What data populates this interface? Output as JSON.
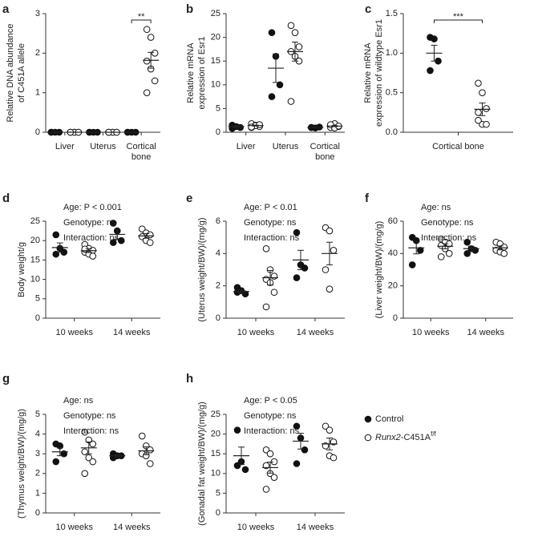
{
  "legend": {
    "entries": [
      {
        "name": "Control",
        "color": "#111",
        "filled": true
      },
      {
        "name": "Runx2",
        "suffix": "-C451A",
        "sup": "f/f",
        "color": "#111",
        "filled": false
      }
    ]
  },
  "chart_data": [
    {
      "panel": "a",
      "type": "dot",
      "ylabel": [
        "Relative DNA abundance",
        "of C451A allele"
      ],
      "categories": [
        [
          "Liver"
        ],
        [
          "Uterus"
        ],
        [
          "Cortical",
          "bone"
        ]
      ],
      "ylim": [
        0,
        3
      ],
      "yticks": [
        0,
        1,
        2,
        3
      ],
      "series": [
        {
          "values": [
            [
              0,
              0,
              0,
              0
            ],
            [
              0,
              0,
              0,
              0
            ],
            [
              0,
              0,
              0,
              0
            ]
          ],
          "means": [
            0,
            0,
            0
          ],
          "sems": [
            0,
            0,
            0
          ]
        },
        {
          "values": [
            [
              0,
              0,
              0,
              0,
              0,
              0,
              0
            ],
            [
              0,
              0,
              0,
              0,
              0,
              0,
              0
            ],
            [
              2.6,
              2.4,
              2.0,
              1.8,
              1.6,
              1.3,
              1.0
            ]
          ],
          "means": [
            0,
            0,
            1.82
          ],
          "sems": [
            0,
            0,
            0.2
          ]
        }
      ],
      "significance": {
        "label": "**",
        "category": 2
      }
    },
    {
      "panel": "b",
      "type": "dot",
      "ylabel": [
        "Relative mRNA",
        "expression of Esr1"
      ],
      "categories": [
        [
          "Liver"
        ],
        [
          "Uterus"
        ],
        [
          "Cortical",
          "bone"
        ]
      ],
      "ylim": [
        0,
        25
      ],
      "yticks": [
        0,
        5,
        10,
        15,
        20,
        25
      ],
      "series": [
        {
          "values": [
            [
              1.5,
              1.2,
              1.0,
              0.8
            ],
            [
              21,
              16,
              10,
              7.5
            ],
            [
              1.0,
              0.9,
              1.1,
              1.0
            ]
          ],
          "means": [
            1.2,
            13.5,
            1.0
          ],
          "sems": [
            0.2,
            3,
            0.05
          ]
        },
        {
          "values": [
            [
              1.8,
              1.5,
              1.2,
              1.0,
              1.4,
              1.6,
              1.1
            ],
            [
              22.5,
              21,
              18,
              17,
              16,
              15,
              6.5
            ],
            [
              1.5,
              1.8,
              1.2,
              1.0,
              0.9,
              1.3,
              1.6
            ]
          ],
          "means": [
            1.4,
            17,
            1.3
          ],
          "sems": [
            0.1,
            2,
            0.1
          ]
        }
      ]
    },
    {
      "panel": "c",
      "type": "dot",
      "ylabel": [
        "Relative mRNA",
        "expression of wildtype Esr1"
      ],
      "categories": [
        [
          "Cortical bone"
        ]
      ],
      "ylim": [
        0,
        1.5
      ],
      "yticks": [
        {
          "value": 0,
          "label": "0.0"
        },
        {
          "value": 0.5,
          "label": "0.5"
        },
        {
          "value": 1,
          "label": "1.0"
        },
        {
          "value": 1.5,
          "label": "1.5"
        }
      ],
      "series": [
        {
          "values": [
            [
              1.2,
              1.18,
              0.9,
              0.78
            ]
          ],
          "means": [
            1.0
          ],
          "sems": [
            0.1
          ]
        },
        {
          "values": [
            [
              0.62,
              0.5,
              0.3,
              0.25,
              0.1,
              0.1,
              0.15
            ]
          ],
          "means": [
            0.29
          ],
          "sems": [
            0.08
          ]
        }
      ],
      "significance": {
        "label": "***",
        "category": 0
      }
    },
    {
      "panel": "d",
      "type": "dot",
      "ylabel": [
        "Body weight/g"
      ],
      "annotations": [
        "Age: P < 0.001",
        "Genotype: ns",
        "Interaction: ns"
      ],
      "categories": [
        [
          "10 weeks"
        ],
        [
          "14 weeks"
        ]
      ],
      "ylim": [
        0,
        25
      ],
      "yticks": [
        0,
        5,
        10,
        15,
        20,
        25
      ],
      "series": [
        {
          "values": [
            [
              21.5,
              18,
              17,
              16.5
            ],
            [
              24.5,
              22.5,
              20,
              19.5
            ]
          ],
          "means": [
            18.2,
            21.6
          ],
          "sems": [
            1.2,
            1.2
          ]
        },
        {
          "values": [
            [
              19,
              18,
              17.5,
              17,
              16.5,
              16,
              17.8
            ],
            [
              23,
              22,
              21.5,
              21,
              20,
              19.5
            ]
          ],
          "means": [
            17.4,
            21.2
          ],
          "sems": [
            0.5,
            0.6
          ]
        }
      ]
    },
    {
      "panel": "e",
      "type": "dot",
      "ylabel": [
        "(Uterus weight/BW)/(mg/g)"
      ],
      "annotations": [
        "Age: P < 0.01",
        "Genotype: ns",
        "Interaction: ns"
      ],
      "categories": [
        [
          "10 weeks"
        ],
        [
          "14 weeks"
        ]
      ],
      "ylim": [
        0,
        6
      ],
      "yticks": [
        0,
        2,
        4,
        6
      ],
      "series": [
        {
          "values": [
            [
              1.9,
              1.7,
              1.5,
              1.6
            ],
            [
              5.3,
              3.3,
              3.1,
              2.5
            ]
          ],
          "means": [
            1.65,
            3.6
          ],
          "sems": [
            0.1,
            0.6
          ]
        },
        {
          "values": [
            [
              4.3,
              3.0,
              2.6,
              2.4,
              2.2,
              1.6,
              0.7
            ],
            [
              5.6,
              5.4,
              4.2,
              3.0,
              1.8
            ]
          ],
          "means": [
            2.5,
            4.0
          ],
          "sems": [
            0.45,
            0.7
          ]
        }
      ]
    },
    {
      "panel": "f",
      "type": "dot",
      "ylabel": [
        "(Liver weight/BW)/(mg/g)"
      ],
      "annotations": [
        "Age: ns",
        "Genotype: ns",
        "Interaction: ns"
      ],
      "categories": [
        [
          "10 weeks"
        ],
        [
          "14 weeks"
        ]
      ],
      "ylim": [
        0,
        60
      ],
      "yticks": [
        0,
        20,
        40,
        60
      ],
      "series": [
        {
          "values": [
            [
              50,
              48,
              42,
              33
            ],
            [
              47,
              43,
              42,
              40
            ]
          ],
          "means": [
            43.5,
            43
          ],
          "sems": [
            3.7,
            1.5
          ]
        },
        {
          "values": [
            [
              49,
              47,
              46,
              45,
              43,
              40,
              38
            ],
            [
              47,
              46,
              44,
              42,
              41,
              40
            ]
          ],
          "means": [
            44.5,
            43.5
          ],
          "sems": [
            1.6,
            1.2
          ]
        }
      ]
    },
    {
      "panel": "g",
      "type": "dot",
      "ylabel": [
        "(Thymus weight/BW)/(mg/g)"
      ],
      "annotations": [
        "Age: ns",
        "Genotype: ns",
        "Interaction: ns"
      ],
      "categories": [
        [
          "10 weeks"
        ],
        [
          "14 weeks"
        ]
      ],
      "ylim": [
        0,
        5
      ],
      "yticks": [
        0,
        1,
        2,
        3,
        4,
        5
      ],
      "series": [
        {
          "values": [
            [
              3.5,
              3.4,
              3.0,
              2.6
            ],
            [
              3.0,
              2.9,
              2.9,
              2.8
            ]
          ],
          "means": [
            3.1,
            2.9
          ],
          "sems": [
            0.2,
            0.05
          ]
        },
        {
          "values": [
            [
              4.1,
              3.7,
              3.5,
              3.1,
              2.8,
              2.6,
              2.0
            ],
            [
              3.9,
              3.4,
              3.2,
              3.0,
              2.9,
              2.5
            ]
          ],
          "means": [
            3.3,
            3.15
          ],
          "sems": [
            0.3,
            0.2
          ]
        }
      ]
    },
    {
      "panel": "h",
      "type": "dot",
      "ylabel": [
        "(Gonadal fat weight/BW)/(mg/g)"
      ],
      "annotations": [
        "Age: P < 0.05",
        "Genotype: ns",
        "Interaction: ns"
      ],
      "categories": [
        [
          "10 weeks"
        ],
        [
          "14 weeks"
        ]
      ],
      "ylim": [
        0,
        25
      ],
      "yticks": [
        0,
        5,
        10,
        15,
        20,
        25
      ],
      "series": [
        {
          "values": [
            [
              21,
              13,
              11,
              12
            ],
            [
              22,
              19,
              16,
              12.5
            ]
          ],
          "means": [
            14.5,
            18.2
          ],
          "sems": [
            2.2,
            2
          ]
        },
        {
          "values": [
            [
              16,
              15,
              13,
              12,
              10,
              9,
              6
            ],
            [
              22,
              21,
              18,
              17,
              14.5,
              14
            ]
          ],
          "means": [
            11.5,
            17.5
          ],
          "sems": [
            1.4,
            1.5
          ]
        }
      ]
    }
  ]
}
